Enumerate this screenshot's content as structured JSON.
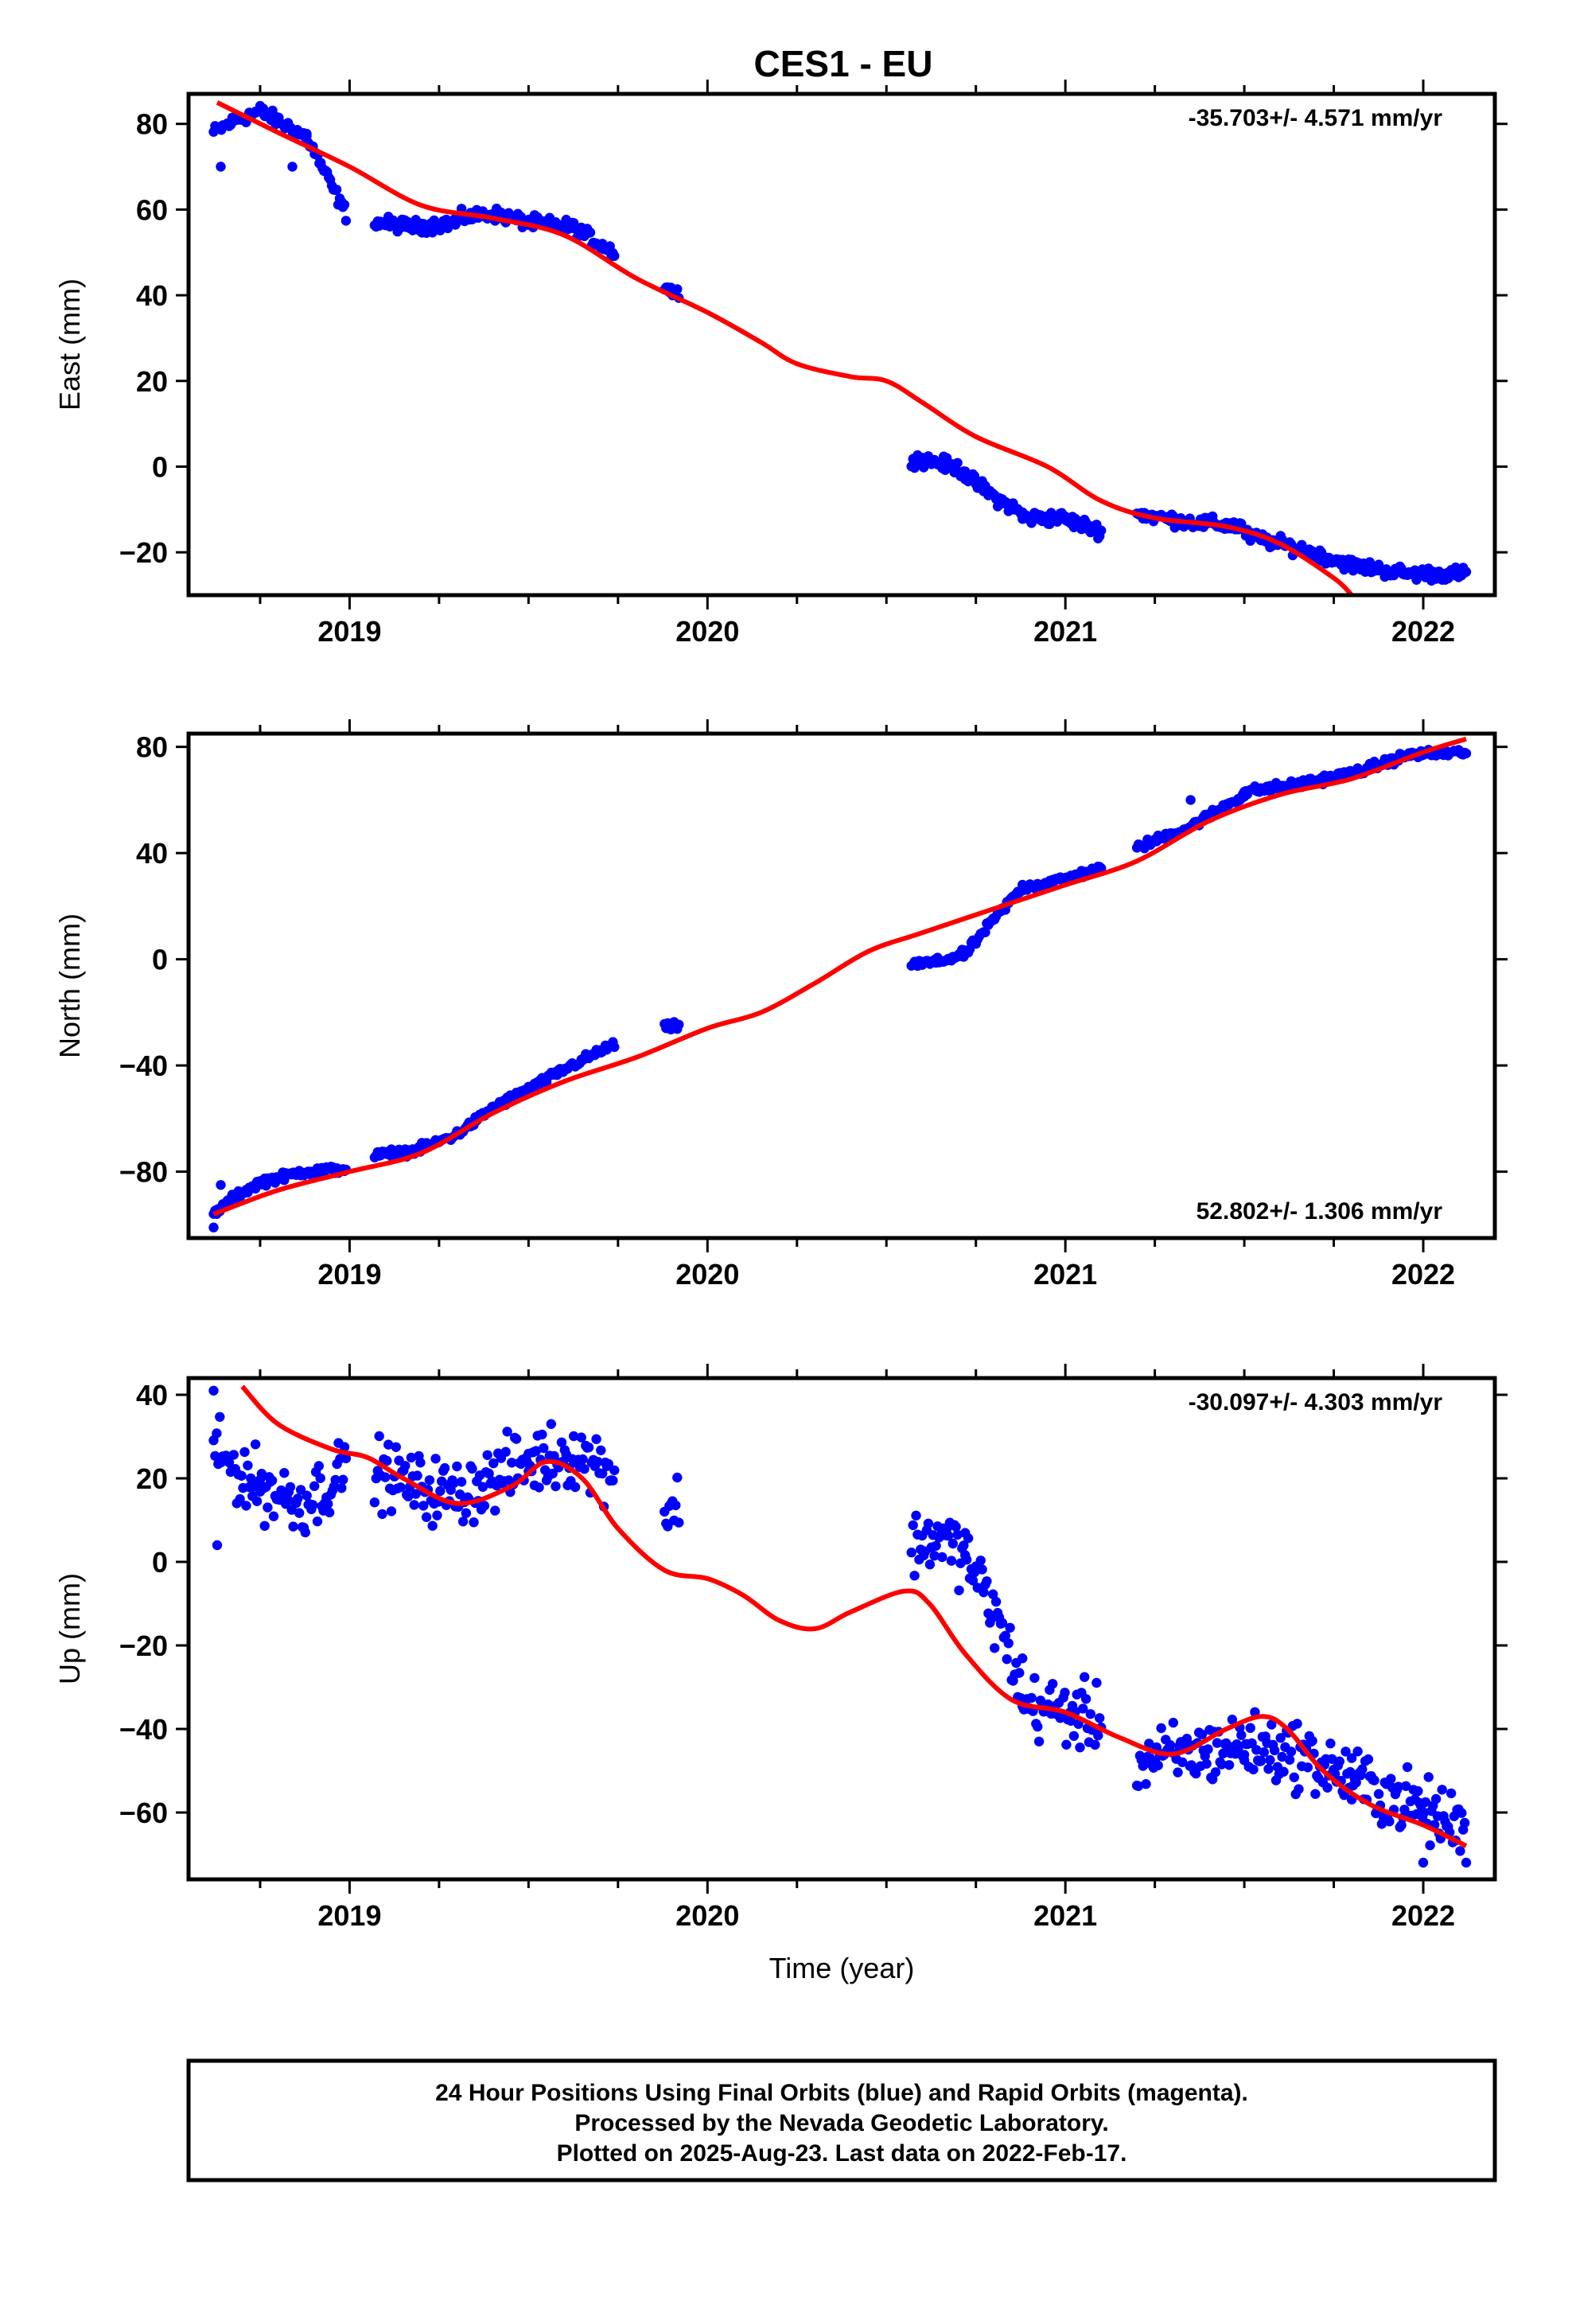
{
  "title": "CES1 - EU",
  "footer": {
    "line1": "24 Hour Positions Using Final Orbits (blue) and Rapid Orbits (magenta).",
    "line2": "Processed by the Nevada Geodetic Laboratory.",
    "line3": "Plotted on 2025-Aug-23. Last data on 2022-Feb-17."
  },
  "colors": {
    "points": "#0000ff",
    "model": "#ff0000",
    "frame": "#000000",
    "background": "#ffffff"
  },
  "chart_data": [
    {
      "type": "scatter",
      "title": "",
      "xlabel": "",
      "ylabel": "East (mm)",
      "xlim": [
        2018.55,
        2022.2
      ],
      "ylim": [
        -30,
        87
      ],
      "xticks": [
        2019,
        2020,
        2021,
        2022
      ],
      "yticks": [
        -20,
        0,
        20,
        40,
        60,
        80
      ],
      "rate_label": "-35.703+/- 4.571 mm/yr",
      "rate_position": "top-right",
      "series": [
        {
          "kind": "points",
          "segments": [
            {
              "x0": 2018.62,
              "x1": 2018.75,
              "y": [
                78,
                81,
                83
              ]
            },
            {
              "x0": 2018.75,
              "x1": 2018.88,
              "y": [
                83,
                80,
                77
              ]
            },
            {
              "x0": 2018.88,
              "x1": 2018.99,
              "y": [
                77,
                68,
                59
              ]
            },
            {
              "x0": 2019.07,
              "x1": 2019.3,
              "y": [
                57,
                56,
                57
              ]
            },
            {
              "x0": 2019.3,
              "x1": 2019.5,
              "y": [
                58,
                59,
                57
              ]
            },
            {
              "x0": 2019.5,
              "x1": 2019.74,
              "y": [
                57,
                56,
                50
              ]
            },
            {
              "x0": 2019.88,
              "x1": 2019.92,
              "y": [
                42,
                40
              ]
            },
            {
              "x0": 2020.57,
              "x1": 2020.72,
              "y": [
                2,
                1,
                -1
              ]
            },
            {
              "x0": 2020.72,
              "x1": 2020.88,
              "y": [
                -2,
                -7,
                -11
              ]
            },
            {
              "x0": 2020.88,
              "x1": 2021.1,
              "y": [
                -12,
                -12,
                -15
              ]
            },
            {
              "x0": 2021.2,
              "x1": 2021.5,
              "y": [
                -11,
                -13,
                -14
              ]
            },
            {
              "x0": 2021.5,
              "x1": 2021.8,
              "y": [
                -16,
                -19,
                -23
              ]
            },
            {
              "x0": 2021.8,
              "x1": 2022.12,
              "y": [
                -23,
                -25,
                -25
              ]
            }
          ],
          "outliers": [
            [
              2018.64,
              70
            ],
            [
              2018.84,
              70
            ],
            [
              2021.4,
              -12
            ]
          ]
        },
        {
          "kind": "line",
          "x": [
            2018.63,
            2018.8,
            2019.0,
            2019.2,
            2019.4,
            2019.6,
            2019.8,
            2020.0,
            2020.15,
            2020.25,
            2020.4,
            2020.5,
            2020.6,
            2020.75,
            2020.95,
            2021.1,
            2021.25,
            2021.45,
            2021.6,
            2021.75,
            2021.8
          ],
          "y": [
            85,
            78,
            70,
            61,
            58,
            54,
            44,
            36,
            29,
            24,
            21,
            20,
            15,
            7,
            0,
            -8,
            -12,
            -14,
            -18,
            -26,
            -30
          ]
        }
      ]
    },
    {
      "type": "scatter",
      "title": "",
      "xlabel": "",
      "ylabel": "North (mm)",
      "xlim": [
        2018.55,
        2022.2
      ],
      "ylim": [
        -105,
        85
      ],
      "xticks": [
        2019,
        2020,
        2021,
        2022
      ],
      "yticks": [
        -80,
        -40,
        0,
        40,
        80
      ],
      "rate_label": "52.802+/- 1.306 mm/yr",
      "rate_position": "bottom-right",
      "series": [
        {
          "kind": "points",
          "segments": [
            {
              "x0": 2018.62,
              "x1": 2018.75,
              "y": [
                -96,
                -89,
                -84
              ]
            },
            {
              "x0": 2018.75,
              "x1": 2018.99,
              "y": [
                -84,
                -80,
                -79
              ]
            },
            {
              "x0": 2019.07,
              "x1": 2019.3,
              "y": [
                -74,
                -72,
                -66
              ]
            },
            {
              "x0": 2019.3,
              "x1": 2019.5,
              "y": [
                -66,
                -56,
                -49
              ]
            },
            {
              "x0": 2019.5,
              "x1": 2019.74,
              "y": [
                -49,
                -40,
                -32
              ]
            },
            {
              "x0": 2019.88,
              "x1": 2019.92,
              "y": [
                -26,
                -25
              ]
            },
            {
              "x0": 2020.57,
              "x1": 2020.72,
              "y": [
                -2,
                -1,
                2
              ]
            },
            {
              "x0": 2020.72,
              "x1": 2020.88,
              "y": [
                2,
                15,
                27
              ]
            },
            {
              "x0": 2020.88,
              "x1": 2021.1,
              "y": [
                27,
                30,
                34
              ]
            },
            {
              "x0": 2021.2,
              "x1": 2021.5,
              "y": [
                42,
                50,
                62
              ]
            },
            {
              "x0": 2021.5,
              "x1": 2021.8,
              "y": [
                63,
                66,
                70
              ]
            },
            {
              "x0": 2021.8,
              "x1": 2022.12,
              "y": [
                70,
                77,
                78
              ]
            }
          ],
          "outliers": [
            [
              2018.62,
              -101
            ],
            [
              2018.64,
              -85
            ],
            [
              2021.35,
              60
            ]
          ]
        },
        {
          "kind": "line",
          "x": [
            2018.62,
            2018.8,
            2019.0,
            2019.2,
            2019.4,
            2019.6,
            2019.8,
            2020.0,
            2020.15,
            2020.3,
            2020.45,
            2020.6,
            2020.8,
            2021.0,
            2021.2,
            2021.4,
            2021.6,
            2021.8,
            2022.0,
            2022.12
          ],
          "y": [
            -96,
            -87,
            -80,
            -73,
            -58,
            -46,
            -37,
            -26,
            -20,
            -9,
            3,
            10,
            19,
            28,
            37,
            52,
            62,
            68,
            78,
            83
          ]
        }
      ]
    },
    {
      "type": "scatter",
      "title": "",
      "xlabel": "Time (year)",
      "ylabel": "Up (mm)",
      "xlim": [
        2018.55,
        2022.2
      ],
      "ylim": [
        -76,
        44
      ],
      "xticks": [
        2019,
        2020,
        2021,
        2022
      ],
      "yticks": [
        -60,
        -40,
        -20,
        0,
        20,
        40
      ],
      "rate_label": "-30.097+/- 4.303 mm/yr",
      "rate_position": "top-right",
      "series": [
        {
          "kind": "points",
          "segments": [
            {
              "x0": 2018.62,
              "x1": 2018.75,
              "y": [
                26,
                22,
                18
              ]
            },
            {
              "x0": 2018.75,
              "x1": 2018.99,
              "y": [
                18,
                14,
                22
              ]
            },
            {
              "x0": 2019.07,
              "x1": 2019.3,
              "y": [
                22,
                18,
                16
              ]
            },
            {
              "x0": 2019.3,
              "x1": 2019.5,
              "y": [
                16,
                20,
                24
              ]
            },
            {
              "x0": 2019.5,
              "x1": 2019.74,
              "y": [
                24,
                26,
                22
              ]
            },
            {
              "x0": 2019.88,
              "x1": 2019.92,
              "y": [
                12,
                14
              ]
            },
            {
              "x0": 2020.57,
              "x1": 2020.72,
              "y": [
                4,
                6,
                2
              ]
            },
            {
              "x0": 2020.72,
              "x1": 2020.88,
              "y": [
                2,
                -12,
                -30
              ]
            },
            {
              "x0": 2020.88,
              "x1": 2021.1,
              "y": [
                -34,
                -36,
                -38
              ]
            },
            {
              "x0": 2021.2,
              "x1": 2021.5,
              "y": [
                -48,
                -46,
                -44
              ]
            },
            {
              "x0": 2021.5,
              "x1": 2021.8,
              "y": [
                -44,
                -46,
                -52
              ]
            },
            {
              "x0": 2021.8,
              "x1": 2022.12,
              "y": [
                -52,
                -58,
                -64
              ]
            }
          ],
          "outliers": [
            [
              2018.62,
              41
            ],
            [
              2018.63,
              4
            ],
            [
              2022.0,
              -72
            ]
          ]
        },
        {
          "kind": "line",
          "x": [
            2018.7,
            2018.8,
            2018.95,
            2019.05,
            2019.15,
            2019.3,
            2019.45,
            2019.55,
            2019.65,
            2019.75,
            2019.88,
            2020.0,
            2020.1,
            2020.2,
            2020.3,
            2020.4,
            2020.55,
            2020.62,
            2020.72,
            2020.85,
            2021.0,
            2021.15,
            2021.3,
            2021.45,
            2021.55,
            2021.62,
            2021.72,
            2021.85,
            2022.0,
            2022.12
          ],
          "y": [
            42,
            33,
            27,
            25,
            20,
            14,
            18,
            24,
            20,
            8,
            -2,
            -4,
            -8,
            -14,
            -16,
            -12,
            -7,
            -10,
            -22,
            -33,
            -36,
            -42,
            -46,
            -40,
            -37,
            -40,
            -50,
            -58,
            -63,
            -68
          ]
        }
      ]
    }
  ]
}
